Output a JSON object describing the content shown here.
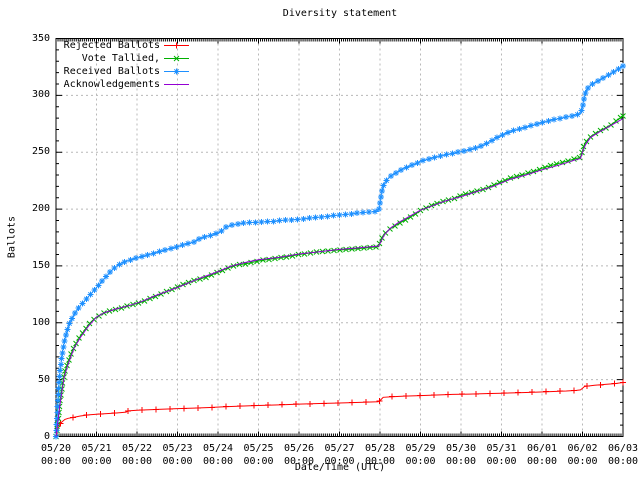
{
  "title": "Diversity statement",
  "y_axis": {
    "label": "Ballots",
    "tick_values": [
      0,
      50,
      100,
      150,
      200,
      250,
      300,
      350
    ]
  },
  "x_axis": {
    "label": "Date/Time (UTC)",
    "tick_dates": [
      "05/20",
      "05/21",
      "05/22",
      "05/23",
      "05/24",
      "05/25",
      "05/26",
      "05/27",
      "05/28",
      "05/29",
      "05/30",
      "05/31",
      "06/01",
      "06/02",
      "06/03"
    ],
    "tick_time": "00:00"
  },
  "colors": {
    "background": "#ffffff",
    "axis": "#000000",
    "grid": "#b8b8b8",
    "rejected": "#ff0000",
    "tallied": "#00b000",
    "received": "#1e90ff",
    "acknowledgements": "#9400d3"
  },
  "legend": {
    "entries": [
      {
        "label": "Rejected Ballots",
        "series": "rejected"
      },
      {
        "label": "Vote Tallied,",
        "series": "tallied"
      },
      {
        "label": "Received Ballots",
        "series": "received"
      },
      {
        "label": "Acknowledgements",
        "series": "acknowledgements"
      }
    ]
  },
  "chart_data": {
    "type": "line",
    "title": "Diversity statement",
    "xlabel": "Date/Time (UTC)",
    "ylabel": "Ballots",
    "x_unit": "days since 05/20 00:00 UTC",
    "xlim": [
      0,
      14
    ],
    "ylim": [
      0,
      350
    ],
    "grid": true,
    "legend_position": "top-left",
    "series": [
      {
        "name": "Rejected Ballots",
        "key": "rejected",
        "color": "#ff0000",
        "marker": "plus",
        "marker_spacing": 14,
        "points": [
          [
            0,
            0
          ],
          [
            0.03,
            4
          ],
          [
            0.06,
            8
          ],
          [
            0.1,
            11
          ],
          [
            0.15,
            13
          ],
          [
            0.22,
            15
          ],
          [
            0.3,
            16
          ],
          [
            0.45,
            17
          ],
          [
            0.6,
            18
          ],
          [
            0.8,
            19
          ],
          [
            1.0,
            19.5
          ],
          [
            1.2,
            20
          ],
          [
            1.4,
            20.5
          ],
          [
            1.6,
            21
          ],
          [
            1.73,
            21.5
          ],
          [
            1.78,
            22.5
          ],
          [
            2.0,
            23
          ],
          [
            2.3,
            23.5
          ],
          [
            2.6,
            24
          ],
          [
            3.0,
            24.5
          ],
          [
            3.4,
            25
          ],
          [
            3.8,
            25.5
          ],
          [
            4.1,
            26
          ],
          [
            4.4,
            26.5
          ],
          [
            4.8,
            27
          ],
          [
            5.2,
            27.5
          ],
          [
            5.6,
            28
          ],
          [
            6.0,
            28.5
          ],
          [
            6.5,
            29
          ],
          [
            7.0,
            29.5
          ],
          [
            7.5,
            30
          ],
          [
            7.95,
            30.5
          ],
          [
            8.0,
            31.5
          ],
          [
            8.04,
            33
          ],
          [
            8.08,
            34.5
          ],
          [
            8.3,
            35
          ],
          [
            8.6,
            35.5
          ],
          [
            9.0,
            36
          ],
          [
            9.4,
            36.5
          ],
          [
            9.8,
            37
          ],
          [
            10.2,
            37.3
          ],
          [
            10.6,
            37.7
          ],
          [
            11.0,
            38
          ],
          [
            11.4,
            38.5
          ],
          [
            11.8,
            39
          ],
          [
            12.2,
            39.5
          ],
          [
            12.6,
            40
          ],
          [
            12.85,
            40.5
          ],
          [
            12.95,
            41
          ],
          [
            13.0,
            42.5
          ],
          [
            13.05,
            44
          ],
          [
            13.3,
            45
          ],
          [
            13.6,
            46
          ],
          [
            13.8,
            46.5
          ],
          [
            14.0,
            47.5
          ]
        ]
      },
      {
        "name": "Vote Tallied,",
        "key": "tallied",
        "color": "#00b000",
        "marker": "cross",
        "marker_spacing": 6,
        "points": [
          [
            0,
            0
          ],
          [
            0.04,
            10
          ],
          [
            0.08,
            24
          ],
          [
            0.12,
            37
          ],
          [
            0.17,
            48
          ],
          [
            0.22,
            57
          ],
          [
            0.3,
            66
          ],
          [
            0.4,
            75
          ],
          [
            0.5,
            82
          ],
          [
            0.6,
            88
          ],
          [
            0.7,
            93
          ],
          [
            0.8,
            98
          ],
          [
            0.9,
            102
          ],
          [
            1.0,
            105
          ],
          [
            1.15,
            108
          ],
          [
            1.3,
            110
          ],
          [
            1.5,
            112
          ],
          [
            1.7,
            114
          ],
          [
            1.9,
            116
          ],
          [
            2.1,
            118
          ],
          [
            2.3,
            121
          ],
          [
            2.5,
            124
          ],
          [
            2.7,
            127
          ],
          [
            2.9,
            130
          ],
          [
            3.1,
            133
          ],
          [
            3.3,
            136
          ],
          [
            3.5,
            138
          ],
          [
            3.7,
            140
          ],
          [
            3.9,
            143
          ],
          [
            4.1,
            146
          ],
          [
            4.3,
            149
          ],
          [
            4.5,
            151
          ],
          [
            4.7,
            152
          ],
          [
            4.9,
            153.5
          ],
          [
            5.1,
            155
          ],
          [
            5.4,
            156.5
          ],
          [
            5.7,
            158
          ],
          [
            6.0,
            160
          ],
          [
            6.3,
            161.5
          ],
          [
            6.6,
            163
          ],
          [
            7.0,
            164
          ],
          [
            7.4,
            165
          ],
          [
            7.7,
            166
          ],
          [
            7.97,
            167
          ],
          [
            8.0,
            171
          ],
          [
            8.05,
            175
          ],
          [
            8.1,
            178
          ],
          [
            8.2,
            181
          ],
          [
            8.3,
            184
          ],
          [
            8.45,
            187
          ],
          [
            8.6,
            190
          ],
          [
            8.75,
            193
          ],
          [
            8.9,
            196
          ],
          [
            9.0,
            199
          ],
          [
            9.2,
            202
          ],
          [
            9.4,
            205
          ],
          [
            9.6,
            207
          ],
          [
            9.8,
            209
          ],
          [
            10.0,
            212
          ],
          [
            10.2,
            214
          ],
          [
            10.4,
            216
          ],
          [
            10.6,
            218
          ],
          [
            10.8,
            221
          ],
          [
            11.0,
            224
          ],
          [
            11.2,
            227
          ],
          [
            11.4,
            229
          ],
          [
            11.6,
            231
          ],
          [
            11.8,
            233
          ],
          [
            12.0,
            236
          ],
          [
            12.2,
            238
          ],
          [
            12.4,
            240
          ],
          [
            12.6,
            242
          ],
          [
            12.8,
            244
          ],
          [
            12.95,
            245.5
          ],
          [
            13.0,
            251
          ],
          [
            13.04,
            256
          ],
          [
            13.08,
            259
          ],
          [
            13.15,
            262
          ],
          [
            13.25,
            265
          ],
          [
            13.4,
            268
          ],
          [
            13.55,
            271
          ],
          [
            13.7,
            274
          ],
          [
            13.85,
            278
          ],
          [
            14.0,
            282
          ]
        ]
      },
      {
        "name": "Received Ballots",
        "key": "received",
        "color": "#1e90ff",
        "marker": "asterisk",
        "marker_spacing": 6,
        "points": [
          [
            0,
            0
          ],
          [
            0.03,
            18
          ],
          [
            0.06,
            40
          ],
          [
            0.1,
            57
          ],
          [
            0.14,
            69
          ],
          [
            0.18,
            79
          ],
          [
            0.25,
            90
          ],
          [
            0.32,
            98
          ],
          [
            0.4,
            104
          ],
          [
            0.5,
            110
          ],
          [
            0.6,
            115
          ],
          [
            0.7,
            119
          ],
          [
            0.8,
            123
          ],
          [
            0.9,
            127
          ],
          [
            1.0,
            131
          ],
          [
            1.1,
            135
          ],
          [
            1.2,
            139
          ],
          [
            1.3,
            143
          ],
          [
            1.4,
            147
          ],
          [
            1.5,
            150
          ],
          [
            1.65,
            153
          ],
          [
            1.8,
            155
          ],
          [
            2.0,
            157
          ],
          [
            2.2,
            159
          ],
          [
            2.4,
            161
          ],
          [
            2.6,
            163
          ],
          [
            2.8,
            165
          ],
          [
            3.0,
            167
          ],
          [
            3.2,
            169
          ],
          [
            3.4,
            171
          ],
          [
            3.55,
            174
          ],
          [
            3.7,
            176
          ],
          [
            3.85,
            177
          ],
          [
            4.0,
            179
          ],
          [
            4.1,
            181
          ],
          [
            4.2,
            184
          ],
          [
            4.35,
            186
          ],
          [
            4.5,
            187
          ],
          [
            4.75,
            188
          ],
          [
            5.0,
            188.5
          ],
          [
            5.3,
            189
          ],
          [
            5.6,
            190
          ],
          [
            6.0,
            191
          ],
          [
            6.4,
            192.5
          ],
          [
            6.8,
            194
          ],
          [
            7.2,
            195.5
          ],
          [
            7.6,
            197
          ],
          [
            7.97,
            198
          ],
          [
            8.0,
            205
          ],
          [
            8.03,
            212
          ],
          [
            8.07,
            219
          ],
          [
            8.12,
            223
          ],
          [
            8.2,
            227
          ],
          [
            8.3,
            230
          ],
          [
            8.45,
            233
          ],
          [
            8.6,
            236
          ],
          [
            8.75,
            238
          ],
          [
            8.9,
            240
          ],
          [
            9.0,
            242
          ],
          [
            9.2,
            244
          ],
          [
            9.4,
            246
          ],
          [
            9.6,
            247.5
          ],
          [
            9.8,
            249
          ],
          [
            10.0,
            250.5
          ],
          [
            10.2,
            252
          ],
          [
            10.4,
            254
          ],
          [
            10.6,
            257
          ],
          [
            10.8,
            261
          ],
          [
            11.0,
            265
          ],
          [
            11.15,
            267
          ],
          [
            11.3,
            269
          ],
          [
            11.5,
            271
          ],
          [
            11.7,
            273
          ],
          [
            11.85,
            274.5
          ],
          [
            12.0,
            276
          ],
          [
            12.2,
            278
          ],
          [
            12.4,
            279.5
          ],
          [
            12.6,
            281
          ],
          [
            12.8,
            282.5
          ],
          [
            12.95,
            284
          ],
          [
            13.0,
            290
          ],
          [
            13.03,
            296
          ],
          [
            13.07,
            302
          ],
          [
            13.12,
            306
          ],
          [
            13.2,
            309
          ],
          [
            13.35,
            312
          ],
          [
            13.5,
            315
          ],
          [
            13.65,
            318
          ],
          [
            13.8,
            321
          ],
          [
            13.9,
            323.5
          ],
          [
            14.0,
            326
          ]
        ]
      },
      {
        "name": "Acknowledgements",
        "key": "acknowledgements",
        "color": "#9400d3",
        "marker": "none",
        "marker_spacing": 0,
        "points": [
          [
            0,
            0
          ],
          [
            0.1,
            28
          ],
          [
            0.2,
            52
          ],
          [
            0.3,
            64
          ],
          [
            0.45,
            78
          ],
          [
            0.6,
            87
          ],
          [
            0.8,
            97
          ],
          [
            1.0,
            105
          ],
          [
            1.2,
            109
          ],
          [
            1.5,
            112.5
          ],
          [
            1.8,
            115
          ],
          [
            2.1,
            118.5
          ],
          [
            2.5,
            124.5
          ],
          [
            3.0,
            131
          ],
          [
            3.5,
            138.5
          ],
          [
            4.0,
            145
          ],
          [
            4.3,
            149.5
          ],
          [
            4.6,
            152.5
          ],
          [
            5.0,
            155.5
          ],
          [
            5.5,
            157.5
          ],
          [
            6.0,
            160.5
          ],
          [
            6.5,
            162.5
          ],
          [
            7.0,
            164.5
          ],
          [
            7.5,
            166
          ],
          [
            7.97,
            167.5
          ],
          [
            8.03,
            172
          ],
          [
            8.1,
            177
          ],
          [
            8.25,
            183
          ],
          [
            8.45,
            188
          ],
          [
            8.65,
            192
          ],
          [
            8.85,
            196
          ],
          [
            9.0,
            199
          ],
          [
            9.3,
            203
          ],
          [
            9.6,
            207
          ],
          [
            10.0,
            211
          ],
          [
            10.4,
            215.5
          ],
          [
            10.8,
            220
          ],
          [
            11.2,
            226
          ],
          [
            11.6,
            230
          ],
          [
            12.0,
            234.5
          ],
          [
            12.4,
            238.5
          ],
          [
            12.8,
            243
          ],
          [
            12.95,
            244.5
          ],
          [
            13.02,
            252
          ],
          [
            13.08,
            257
          ],
          [
            13.2,
            263
          ],
          [
            13.4,
            267.5
          ],
          [
            13.6,
            271.5
          ],
          [
            13.8,
            275.5
          ],
          [
            14.0,
            279.5
          ]
        ]
      }
    ]
  }
}
